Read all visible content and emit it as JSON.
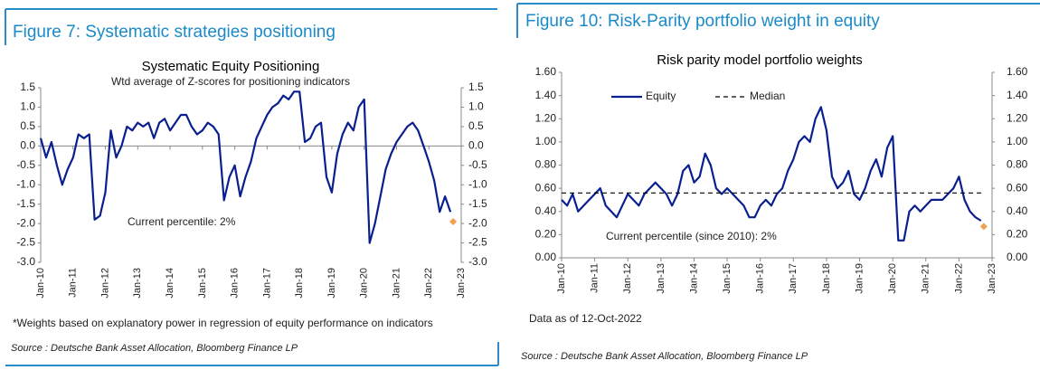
{
  "chart_data": [
    {
      "type": "line",
      "header": "Figure 7: Systematic strategies positioning",
      "title": "Systematic Equity Positioning",
      "subtitle": "Wtd average of Z-scores for positioning indicators",
      "annotation": "Current percentile: 2%",
      "note": "*Weights based on explanatory power in regression of equity performance on indicators",
      "source": "Source : Deutsche Bank Asset Allocation, Bloomberg Finance LP",
      "x": [
        "Jan-10",
        "Mar-10",
        "May-10",
        "Jul-10",
        "Sep-10",
        "Nov-10",
        "Jan-11",
        "Mar-11",
        "May-11",
        "Jul-11",
        "Sep-11",
        "Nov-11",
        "Jan-12",
        "Mar-12",
        "May-12",
        "Jul-12",
        "Sep-12",
        "Nov-12",
        "Jan-13",
        "Mar-13",
        "May-13",
        "Jul-13",
        "Sep-13",
        "Nov-13",
        "Jan-14",
        "Mar-14",
        "May-14",
        "Jul-14",
        "Sep-14",
        "Nov-14",
        "Jan-15",
        "Mar-15",
        "May-15",
        "Jul-15",
        "Sep-15",
        "Nov-15",
        "Jan-16",
        "Mar-16",
        "May-16",
        "Jul-16",
        "Sep-16",
        "Nov-16",
        "Jan-17",
        "Mar-17",
        "May-17",
        "Jul-17",
        "Sep-17",
        "Nov-17",
        "Jan-18",
        "Mar-18",
        "May-18",
        "Jul-18",
        "Sep-18",
        "Nov-18",
        "Jan-19",
        "Mar-19",
        "May-19",
        "Jul-19",
        "Sep-19",
        "Nov-19",
        "Jan-20",
        "Mar-20",
        "May-20",
        "Jul-20",
        "Sep-20",
        "Nov-20",
        "Jan-21",
        "Mar-21",
        "May-21",
        "Jul-21",
        "Sep-21",
        "Nov-21",
        "Jan-22",
        "Mar-22",
        "May-22",
        "Jul-22",
        "Sep-22"
      ],
      "series": [
        {
          "color": "#0a1f8f",
          "values": [
            0.2,
            -0.3,
            0.1,
            -0.5,
            -1.0,
            -0.6,
            -0.3,
            0.3,
            0.2,
            0.3,
            -1.9,
            -1.8,
            -1.2,
            0.4,
            -0.3,
            0.0,
            0.5,
            0.4,
            0.6,
            0.5,
            0.6,
            0.2,
            0.6,
            0.7,
            0.4,
            0.6,
            0.8,
            0.8,
            0.5,
            0.3,
            0.4,
            0.6,
            0.5,
            0.3,
            -1.4,
            -0.8,
            -0.5,
            -1.3,
            -0.8,
            -0.4,
            0.2,
            0.5,
            0.8,
            1.0,
            1.1,
            1.3,
            1.2,
            1.4,
            1.4,
            0.1,
            0.2,
            0.5,
            0.6,
            -0.8,
            -1.2,
            -0.2,
            0.3,
            0.6,
            0.4,
            1.0,
            1.2,
            -2.5,
            -2.0,
            -1.3,
            -0.6,
            -0.2,
            0.1,
            0.3,
            0.5,
            0.6,
            0.4,
            0.0,
            -0.4,
            -0.9,
            -1.7,
            -1.3,
            -1.7
          ]
        }
      ],
      "marker": {
        "x": "Oct-22",
        "value": -1.95,
        "color": "#f0a050"
      },
      "xticks": [
        "Jan-10",
        "Jan-11",
        "Jan-12",
        "Jan-13",
        "Jan-14",
        "Jan-15",
        "Jan-16",
        "Jan-17",
        "Jan-18",
        "Jan-19",
        "Jan-20",
        "Jan-21",
        "Jan-22",
        "Jan-23"
      ],
      "ylim": [
        -3,
        1.5
      ],
      "yticks": [
        {
          "value": -3,
          "label": "-3.0"
        },
        -2.5,
        {
          "value": -2,
          "label": "-2.0"
        },
        -1.5,
        {
          "value": -1,
          "label": "-1.0"
        },
        -0.5,
        {
          "value": 0,
          "label": "0.0"
        },
        0.5,
        {
          "value": 1,
          "label": "1.0"
        },
        1.5
      ],
      "y2lim": [
        -3,
        1.5
      ],
      "y2ticks": [
        {
          "value": -3,
          "label": "-3.0"
        },
        -2.5,
        {
          "value": -2,
          "label": "-2.0"
        },
        -1.5,
        {
          "value": -1,
          "label": "-1.0"
        },
        -0.5,
        {
          "value": 0,
          "label": "0.0"
        },
        0.5,
        {
          "value": 1,
          "label": "1.0"
        },
        1.5
      ]
    },
    {
      "type": "line",
      "header": "Figure 10: Risk-Parity portfolio weight in equity",
      "title": "Risk parity model portfolio weights",
      "annotation": "Current percentile (since 2010): 2%",
      "note": "Data as of 12-Oct-2022",
      "source": "Source : Deutsche Bank Asset Allocation, Bloomberg Finance LP",
      "x": [
        "Jan-10",
        "Mar-10",
        "May-10",
        "Jul-10",
        "Sep-10",
        "Nov-10",
        "Jan-11",
        "Mar-11",
        "May-11",
        "Jul-11",
        "Sep-11",
        "Nov-11",
        "Jan-12",
        "Mar-12",
        "May-12",
        "Jul-12",
        "Sep-12",
        "Nov-12",
        "Jan-13",
        "Mar-13",
        "May-13",
        "Jul-13",
        "Sep-13",
        "Nov-13",
        "Jan-14",
        "Mar-14",
        "May-14",
        "Jul-14",
        "Sep-14",
        "Nov-14",
        "Jan-15",
        "Mar-15",
        "May-15",
        "Jul-15",
        "Sep-15",
        "Nov-15",
        "Jan-16",
        "Mar-16",
        "May-16",
        "Jul-16",
        "Sep-16",
        "Nov-16",
        "Jan-17",
        "Mar-17",
        "May-17",
        "Jul-17",
        "Sep-17",
        "Nov-17",
        "Jan-18",
        "Mar-18",
        "May-18",
        "Jul-18",
        "Sep-18",
        "Nov-18",
        "Jan-19",
        "Mar-19",
        "May-19",
        "Jul-19",
        "Sep-19",
        "Nov-19",
        "Jan-20",
        "Mar-20",
        "May-20",
        "Jul-20",
        "Sep-20",
        "Nov-20",
        "Jan-21",
        "Mar-21",
        "May-21",
        "Jul-21",
        "Sep-21",
        "Nov-21",
        "Jan-22",
        "Mar-22",
        "May-22",
        "Jul-22",
        "Sep-22"
      ],
      "series": [
        {
          "name": "Equity",
          "color": "#0a1f8f",
          "values": [
            0.5,
            0.45,
            0.55,
            0.4,
            0.45,
            0.5,
            0.55,
            0.6,
            0.45,
            0.4,
            0.35,
            0.45,
            0.55,
            0.5,
            0.45,
            0.55,
            0.6,
            0.65,
            0.6,
            0.55,
            0.45,
            0.55,
            0.75,
            0.8,
            0.65,
            0.7,
            0.9,
            0.8,
            0.6,
            0.55,
            0.6,
            0.55,
            0.5,
            0.45,
            0.35,
            0.35,
            0.45,
            0.5,
            0.45,
            0.55,
            0.6,
            0.75,
            0.85,
            1.0,
            1.05,
            1.0,
            1.2,
            1.3,
            1.1,
            0.7,
            0.6,
            0.65,
            0.75,
            0.55,
            0.5,
            0.6,
            0.75,
            0.85,
            0.7,
            0.95,
            1.05,
            0.15,
            0.15,
            0.4,
            0.45,
            0.4,
            0.45,
            0.5,
            0.5,
            0.5,
            0.55,
            0.6,
            0.7,
            0.5,
            0.4,
            0.35,
            0.32
          ]
        },
        {
          "name": "Median",
          "color": "#000000",
          "dashed": true,
          "x": [
            "Jan-10",
            "Oct-22"
          ],
          "values": [
            0.56,
            0.56
          ]
        }
      ],
      "marker": {
        "x": "Oct-22",
        "value": 0.27,
        "color": "#f0a050"
      },
      "xticks": [
        "Jan-10",
        "Jan-11",
        "Jan-12",
        "Jan-13",
        "Jan-14",
        "Jan-15",
        "Jan-16",
        "Jan-17",
        "Jan-18",
        "Jan-19",
        "Jan-20",
        "Jan-21",
        "Jan-22",
        "Jan-23"
      ],
      "ylim": [
        0,
        1.6
      ],
      "yticks": [
        {
          "value": 0,
          "label": "0.00"
        },
        {
          "value": 0.2,
          "label": "0.20"
        },
        {
          "value": 0.4,
          "label": "0.40"
        },
        {
          "value": 0.6,
          "label": "0.60"
        },
        {
          "value": 0.8,
          "label": "0.80"
        },
        {
          "value": 1,
          "label": "1.00"
        },
        {
          "value": 1.2,
          "label": "1.20"
        },
        {
          "value": 1.4,
          "label": "1.40"
        },
        {
          "value": 1.6,
          "label": "1.60"
        }
      ],
      "y2lim": [
        0,
        1.6
      ],
      "y2ticks": [
        {
          "value": 0,
          "label": "0.00"
        },
        {
          "value": 0.2,
          "label": "0.20"
        },
        {
          "value": 0.4,
          "label": "0.40"
        },
        {
          "value": 0.6,
          "label": "0.60"
        },
        {
          "value": 0.8,
          "label": "0.80"
        },
        {
          "value": 1,
          "label": "1.00"
        },
        {
          "value": 1.2,
          "label": "1.20"
        },
        {
          "value": 1.4,
          "label": "1.40"
        },
        {
          "value": 1.6,
          "label": "1.60"
        }
      ]
    }
  ]
}
